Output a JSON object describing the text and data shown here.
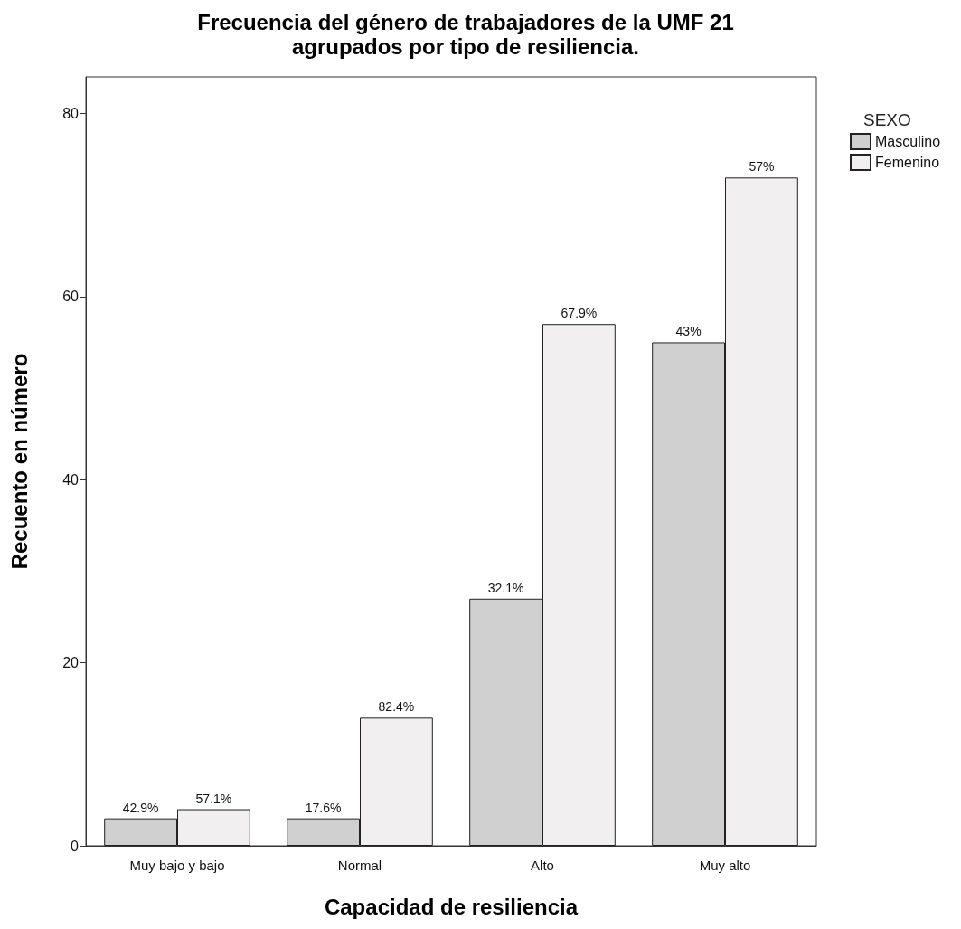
{
  "chart_data": {
    "type": "bar",
    "title": "Frecuencia del género de trabajadores de la UMF 21\nagrupados por tipo de resiliencia.",
    "xlabel": "Capacidad de resiliencia",
    "ylabel": "Recuento en número",
    "legend_title": "SEXO",
    "categories": [
      "Muy bajo y bajo",
      "Normal",
      "Alto",
      "Muy alto"
    ],
    "series": [
      {
        "name": "Masculino",
        "color": "#d0d0d0",
        "values": [
          3,
          3,
          27,
          55
        ]
      },
      {
        "name": "Femenino",
        "color": "#f1efef",
        "values": [
          4,
          14,
          57,
          73
        ]
      }
    ],
    "annotations": [
      {
        "text": "42.9%",
        "x": "Muy bajo y bajo",
        "y": 3
      },
      {
        "text": "57.1%",
        "x": "Muy bajo y bajo",
        "y": 4
      },
      {
        "text": "17.6%",
        "x": "Normal",
        "y": 3
      },
      {
        "text": "82.4%",
        "x": "Normal",
        "y": 14
      },
      {
        "text": "32.1%",
        "x": "Alto",
        "y": 27
      },
      {
        "text": "67.9%",
        "x": "Alto",
        "y": 57
      },
      {
        "text": "43%",
        "x": "Muy alto",
        "y": 55
      },
      {
        "text": "57%",
        "x": "Muy alto",
        "y": 73
      }
    ],
    "ylim": [
      0,
      84
    ],
    "yticks": [
      0,
      20,
      40,
      60,
      80
    ],
    "grid": false,
    "legend": "right"
  }
}
